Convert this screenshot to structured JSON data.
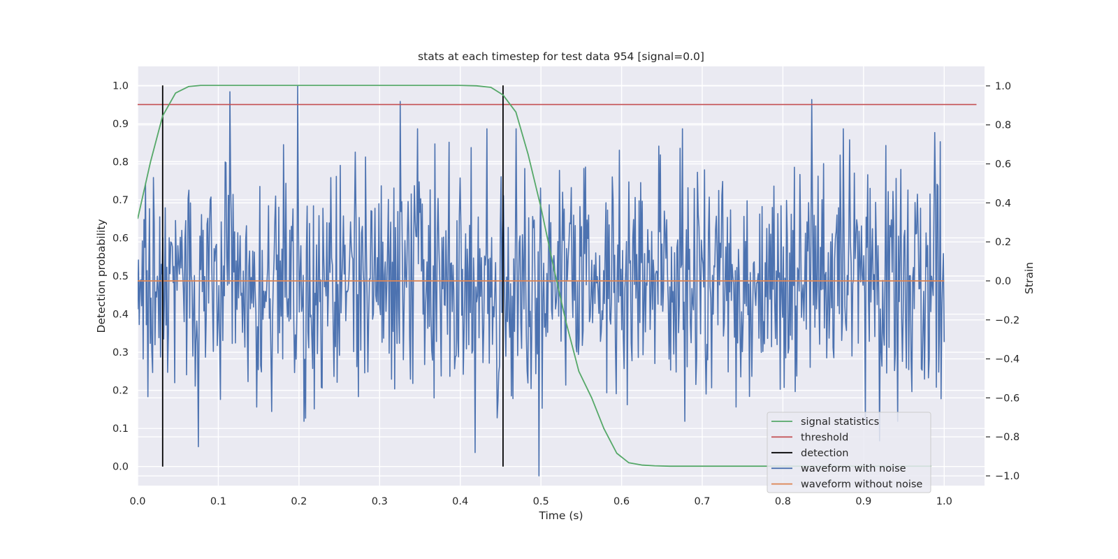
{
  "chart_data": {
    "type": "line",
    "title": "stats at each timestep for test data 954 [signal=0.0]",
    "xlabel": "Time (s)",
    "ylabel_left": "Detection probability",
    "ylabel_right": "Strain",
    "xlim": [
      0.0,
      1.05
    ],
    "ylim_left": [
      -0.05,
      1.05
    ],
    "ylim_right": [
      -1.05,
      1.1
    ],
    "x_ticks": [
      0.0,
      0.1,
      0.2,
      0.3,
      0.4,
      0.5,
      0.6,
      0.7,
      0.8,
      0.9,
      1.0
    ],
    "x_tick_labels": [
      "0.0",
      "0.1",
      "0.2",
      "0.3",
      "0.4",
      "0.5",
      "0.6",
      "0.7",
      "0.8",
      "0.9",
      "1.0"
    ],
    "y_left_ticks": [
      0.0,
      0.1,
      0.2,
      0.3,
      0.4,
      0.5,
      0.6,
      0.7,
      0.8,
      0.9,
      1.0
    ],
    "y_left_tick_labels": [
      "0.0",
      "0.1",
      "0.2",
      "0.3",
      "0.4",
      "0.5",
      "0.6",
      "0.7",
      "0.8",
      "0.9",
      "1.0"
    ],
    "y_right_ticks": [
      -1.0,
      -0.8,
      -0.6,
      -0.4,
      -0.2,
      0.0,
      0.2,
      0.4,
      0.6,
      0.8,
      1.0
    ],
    "y_right_tick_labels": [
      "−1.0",
      "−0.8",
      "−0.6",
      "−0.4",
      "−0.2",
      "0.0",
      "0.2",
      "0.4",
      "0.6",
      "0.8",
      "1.0"
    ],
    "grid": true,
    "legend_position": "lower-right",
    "legend": [
      {
        "label": "signal statistics",
        "color": "#55a868"
      },
      {
        "label": "threshold",
        "color": "#c44e52"
      },
      {
        "label": "detection",
        "color": "#000000"
      },
      {
        "label": "waveform with noise",
        "color": "#4c72b0"
      },
      {
        "label": "waveform without noise",
        "color": "#dd8452"
      }
    ],
    "series": {
      "signal_statistics": {
        "axis": "left",
        "color": "#55a868",
        "x": [
          0.0,
          0.016,
          0.031,
          0.047,
          0.063,
          0.078,
          0.1,
          0.2,
          0.3,
          0.4,
          0.42,
          0.438,
          0.453,
          0.469,
          0.484,
          0.5,
          0.516,
          0.531,
          0.547,
          0.563,
          0.578,
          0.594,
          0.609,
          0.625,
          0.641,
          0.66,
          0.7,
          0.8,
          0.984
        ],
        "y": [
          0.65,
          0.8,
          0.92,
          0.98,
          0.997,
          1.0,
          1.0,
          1.0,
          1.0,
          1.0,
          0.999,
          0.995,
          0.975,
          0.93,
          0.82,
          0.68,
          0.52,
          0.38,
          0.25,
          0.18,
          0.1,
          0.035,
          0.01,
          0.004,
          0.002,
          0.001,
          0.001,
          0.001,
          0.001
        ]
      },
      "threshold": {
        "axis": "left",
        "color": "#c44e52",
        "x": [
          0.0,
          1.04
        ],
        "y": [
          0.95,
          0.95
        ]
      },
      "detection": {
        "axis": "left",
        "color": "#000000",
        "x": [
          0.031,
          0.453
        ],
        "ymin": 0.0,
        "ymax": 1.0
      },
      "waveform_without_noise": {
        "axis": "right",
        "color": "#dd8452",
        "x": [
          0.0,
          1.0
        ],
        "y": [
          0.0,
          0.0
        ]
      },
      "waveform_with_noise": {
        "axis": "right",
        "color": "#4c72b0",
        "x_range": [
          0.0,
          1.0
        ],
        "n_points": 1024,
        "amplitude_std": 0.3,
        "peaks": [
          {
            "x": 0.02,
            "y": 0.53
          },
          {
            "x": 0.075,
            "y": -0.85
          },
          {
            "x": 0.114,
            "y": 0.97
          },
          {
            "x": 0.198,
            "y": 1.0
          },
          {
            "x": 0.326,
            "y": 0.92
          },
          {
            "x": 0.418,
            "y": -0.88
          },
          {
            "x": 0.498,
            "y": -1.0
          },
          {
            "x": 0.836,
            "y": 0.93
          },
          {
            "x": 0.92,
            "y": -0.82
          }
        ]
      }
    }
  }
}
